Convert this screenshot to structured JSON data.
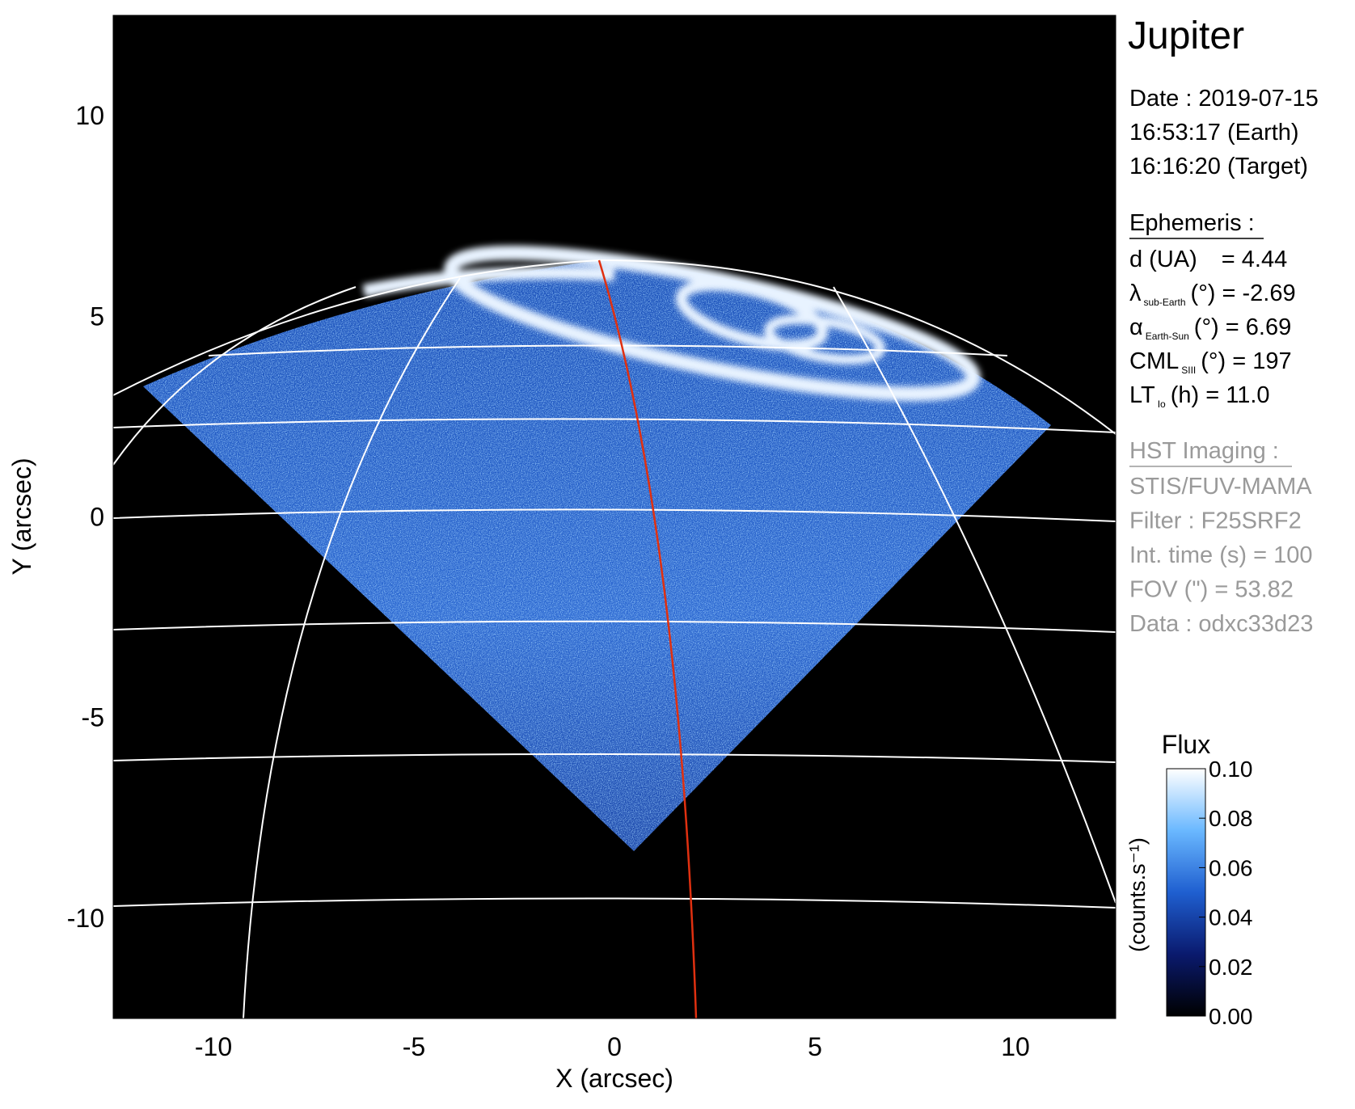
{
  "chart_data": {
    "type": "image",
    "title": "Jupiter",
    "x_label": "X (arcsec)",
    "y_label": "Y (arcsec)",
    "xlim": [
      -12.5,
      12.5
    ],
    "ylim": [
      -12.5,
      12.5
    ],
    "xticks": [
      -10,
      -5,
      0,
      5,
      10
    ],
    "yticks": [
      -10,
      -5,
      0,
      5,
      10
    ],
    "info": {
      "date": [
        "Date : 2019-07-15",
        "16:53:17 (Earth)",
        "16:16:20 (Target)"
      ],
      "ephemeris_title": "Ephemeris :",
      "ephemeris": [
        {
          "symbol": "d (UA)",
          "rest": "= 4.44"
        },
        {
          "symbol": "λ",
          "sub": "sub-Earth",
          "rest": "(°) = -2.69"
        },
        {
          "symbol": "α",
          "sub": "Earth-Sun",
          "rest": "(°) = 6.69"
        },
        {
          "symbol": "CML",
          "sub": "SIII",
          "rest": "(°) = 197"
        },
        {
          "symbol": "LT",
          "sub": "Io",
          "rest": "(h) = 11.0"
        }
      ],
      "imaging_title": "HST Imaging :",
      "imaging": [
        "STIS/FUV-MAMA",
        "Filter : F25SRF2",
        "Int. time (s) = 100",
        "FOV (\") = 53.82",
        "Data : odxc33d23"
      ]
    },
    "colorbar": {
      "label": "Flux",
      "unit": "(counts.s⁻¹)",
      "clim": [
        0,
        0.1
      ],
      "colormap": [
        "#000000",
        "#0a1a6e",
        "#1f5fd0",
        "#6ab8ff",
        "#ffffff"
      ],
      "ticks": [
        {
          "value": 0,
          "label": "0.00"
        },
        {
          "value": 0.02,
          "label": "0.02"
        },
        {
          "value": 0.04,
          "label": "0.04"
        },
        {
          "value": 0.06,
          "label": "0.06"
        },
        {
          "value": 0.08,
          "label": "0.08"
        },
        {
          "value": 0.1,
          "label": "0.10"
        }
      ]
    }
  }
}
